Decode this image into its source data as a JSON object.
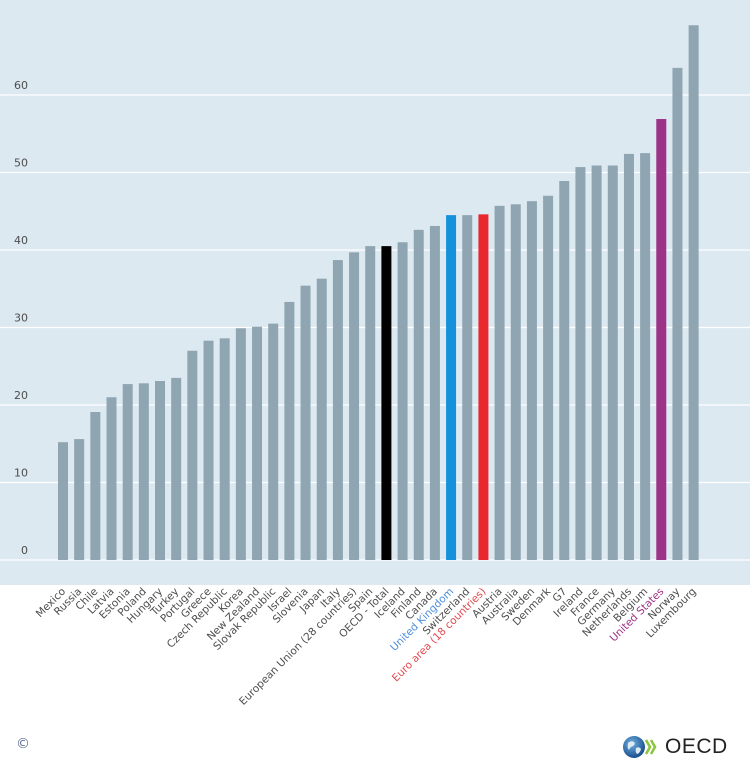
{
  "chart_data": {
    "type": "bar",
    "title": "",
    "xlabel": "",
    "ylabel": "",
    "ylim": [
      0,
      70
    ],
    "yticks": [
      0,
      10,
      20,
      30,
      40,
      50,
      60
    ],
    "grid": true,
    "legend": "none",
    "categories": [
      "Mexico",
      "Russia",
      "Chile",
      "Latvia",
      "Estonia",
      "Poland",
      "Hungary",
      "Turkey",
      "Portugal",
      "Greece",
      "Czech Republic",
      "Korea",
      "New Zealand",
      "Slovak Republic",
      "Israel",
      "Slovenia",
      "Japan",
      "Italy",
      "European Union (28 countries)",
      "Spain",
      "OECD - Total",
      "Iceland",
      "Finland",
      "Canada",
      "United Kingdom",
      "Switzerland",
      "Euro area (18 countries)",
      "Austria",
      "Australia",
      "Sweden",
      "Denmark",
      "G7",
      "Ireland",
      "France",
      "Germany",
      "Netherlands",
      "Belgium",
      "United States",
      "Norway",
      "Luxembourg"
    ],
    "values": [
      15.2,
      15.6,
      19.1,
      21.0,
      22.7,
      22.8,
      23.1,
      23.5,
      27.0,
      28.3,
      28.6,
      29.9,
      30.1,
      30.5,
      33.3,
      35.4,
      36.3,
      38.7,
      39.7,
      40.5,
      40.5,
      41.0,
      42.6,
      43.1,
      44.5,
      44.5,
      44.6,
      45.7,
      45.9,
      46.3,
      47.0,
      48.9,
      50.7,
      50.9,
      50.9,
      52.4,
      52.5,
      56.9,
      63.5,
      69.0
    ],
    "highlights": {
      "OECD - Total": "#000000",
      "United Kingdom": "#1591dc",
      "Euro area (18 countries)": "#e8282e",
      "United States": "#9c3386"
    },
    "label_highlights": {
      "United Kingdom": "#4f8fdc",
      "Euro area (18 countries)": "#e04a4f",
      "United States": "#9c3386"
    },
    "default_bar_color": "#8fa5b2",
    "default_label_color": "#4d4d4d",
    "background_color": "#dde9f1",
    "gridline_color": "#ffffff"
  },
  "footer": {
    "copyright": "©",
    "logo_text": "OECD"
  }
}
